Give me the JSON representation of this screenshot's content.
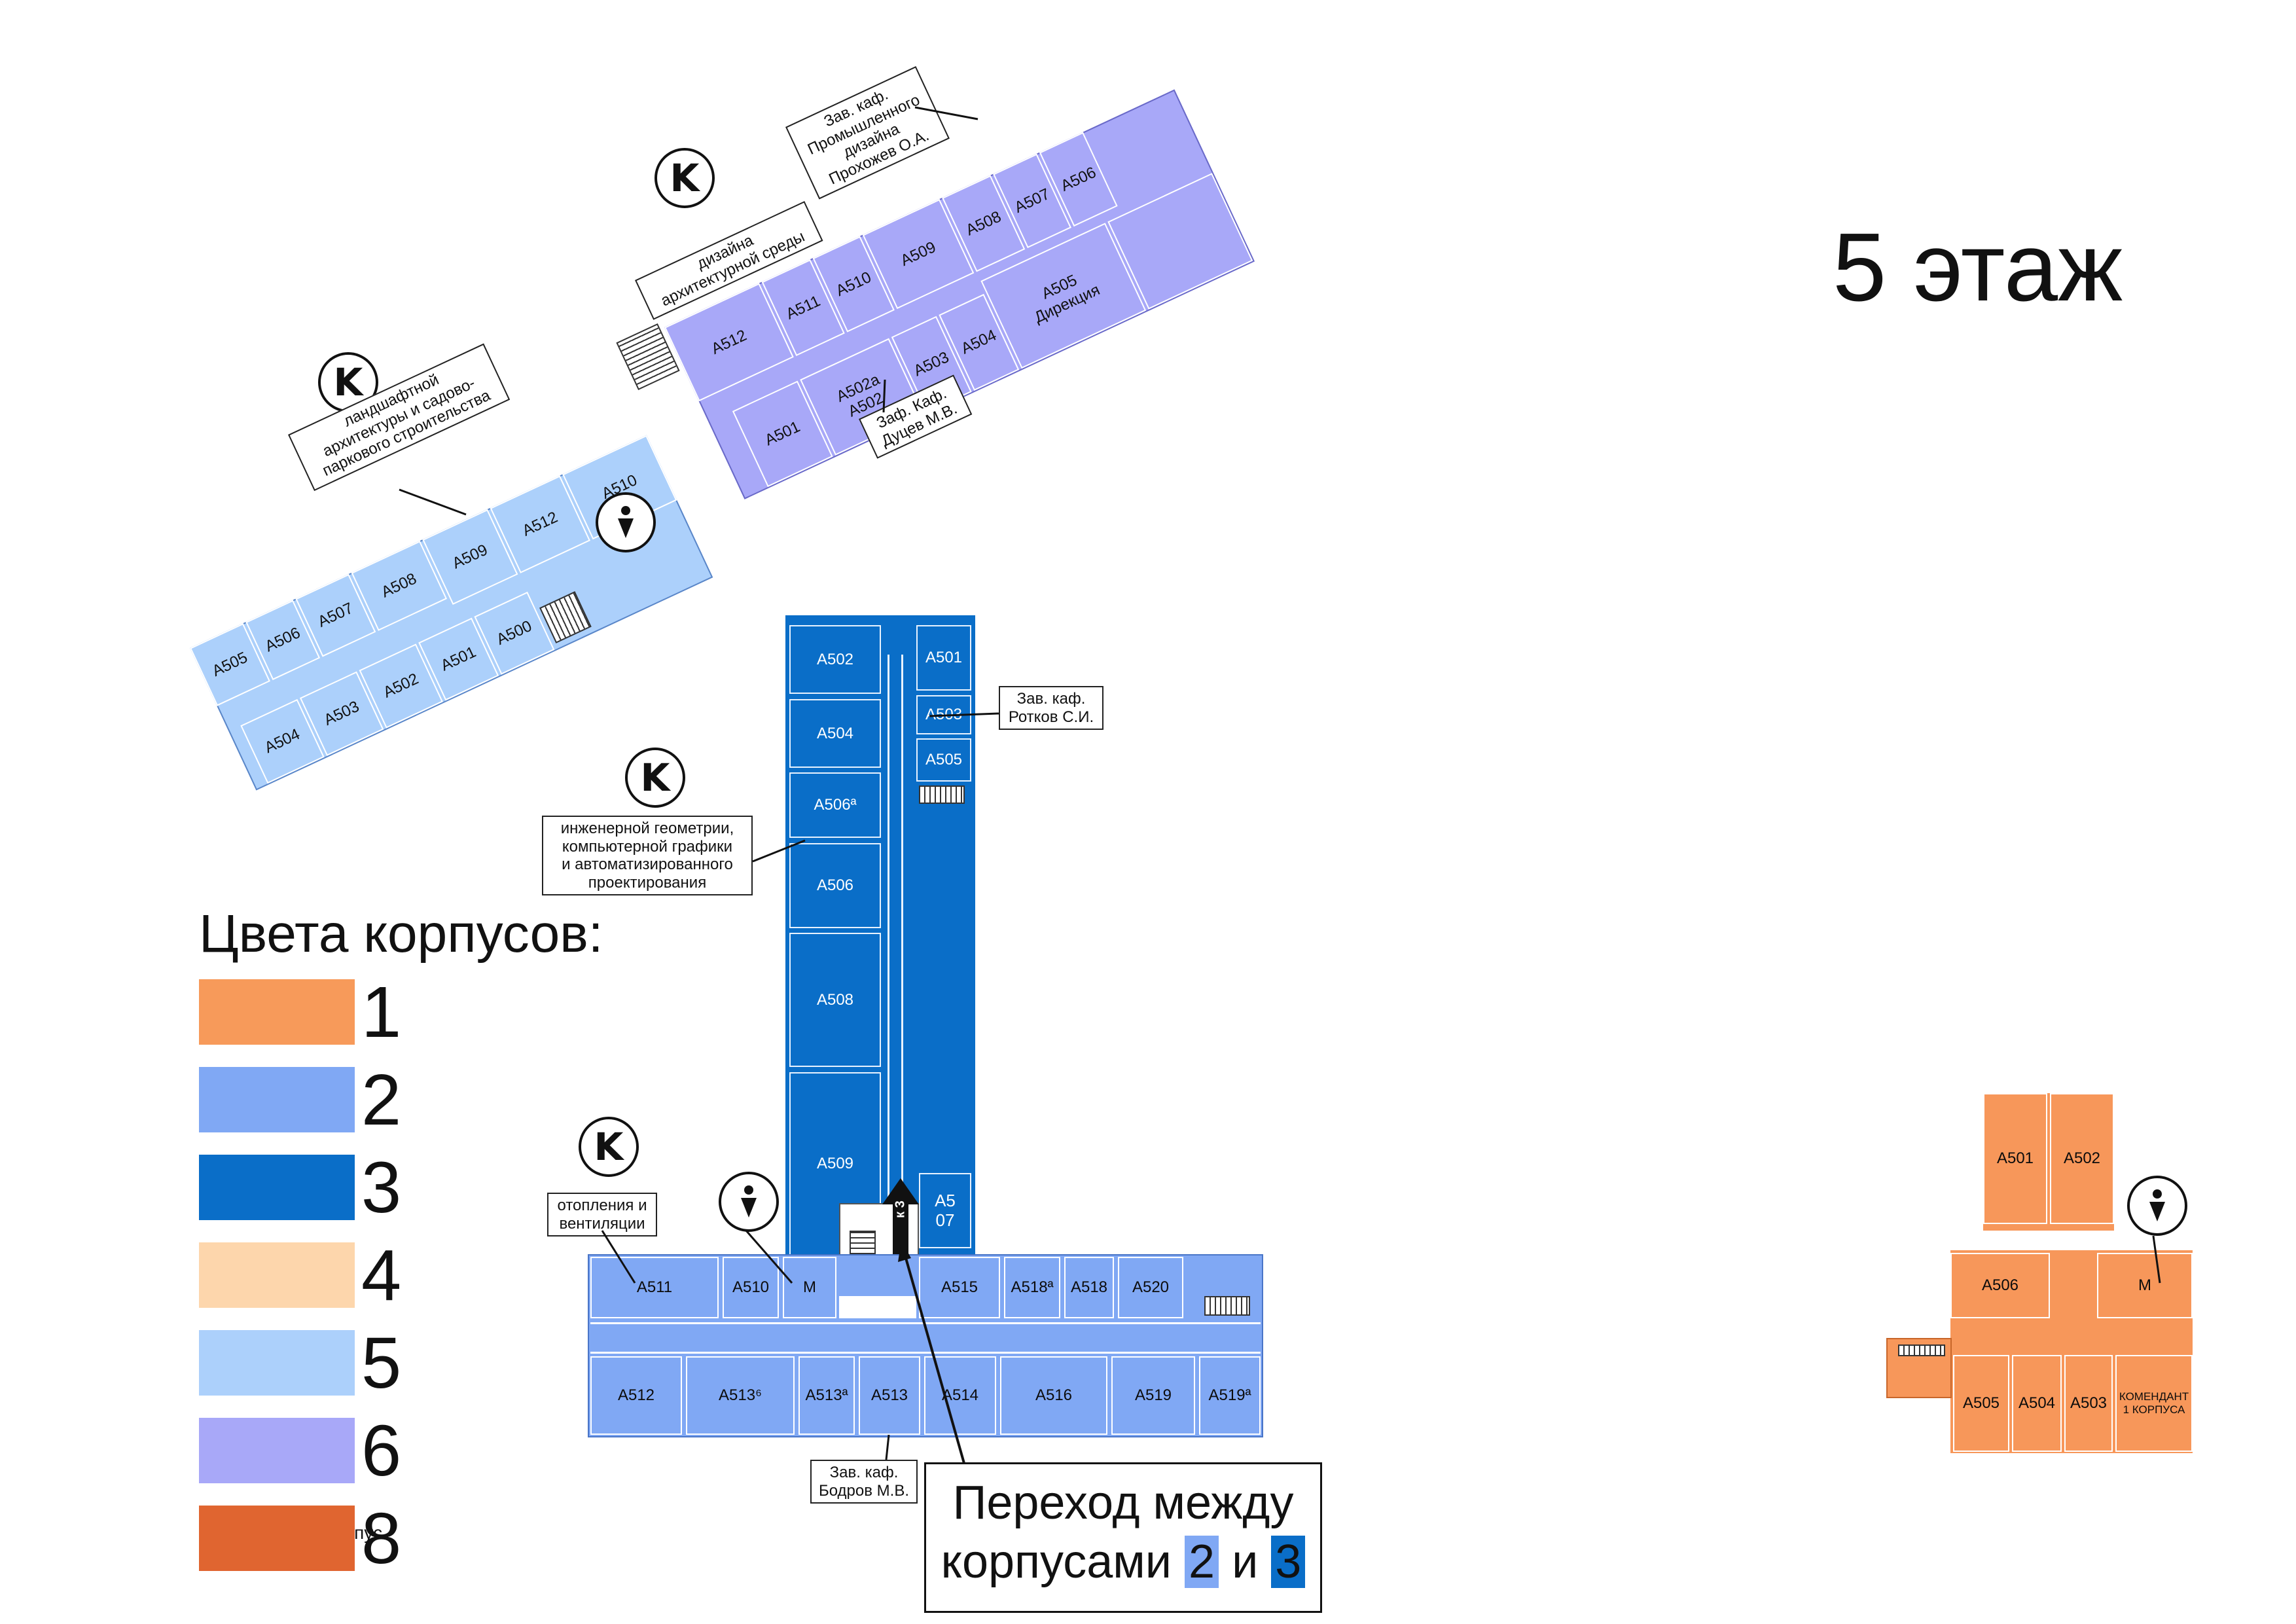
{
  "floor_title": "5 этаж",
  "kafedra_badge": "K",
  "legend": {
    "title": "Цвета корпусов:",
    "items": [
      {
        "label": "1",
        "color": "#f79a5a"
      },
      {
        "label": "2",
        "color": "#80a8f4"
      },
      {
        "label": "3",
        "color": "#0a6ec8"
      },
      {
        "label": "4",
        "color": "#fdd6ac"
      },
      {
        "label": "5",
        "color": "#acd0fb"
      },
      {
        "label": "6",
        "color": "#a8a8f8"
      },
      {
        "label": "8",
        "color": "#e06530"
      }
    ],
    "overlap_text": "орпус"
  },
  "building3": {
    "rooms_left": [
      "A502",
      "A504",
      "A506ª",
      "A506",
      "A508",
      "A509"
    ],
    "rooms_right": [
      "A501",
      "A503",
      "A505",
      "A5\n07"
    ],
    "arrow_label": "к 3"
  },
  "building2": {
    "top_row": [
      "A511",
      "A510",
      "M",
      "A515",
      "A518ª",
      "A518",
      "A520"
    ],
    "bottom_row": [
      "A512",
      "A513⁶",
      "A513ª",
      "A513",
      "A514",
      "A516",
      "A519",
      "A519ª"
    ]
  },
  "building1": {
    "rooms": [
      "A501",
      "A502",
      "A506",
      "M",
      "A505",
      "A504",
      "A503",
      "КОМЕНДАНТ\n1 КОРПУСА"
    ]
  },
  "wing5": {
    "top_row": [
      "A505",
      "A506",
      "A507",
      "A508",
      "A509",
      "A512",
      "A510"
    ],
    "bottom_row": [
      "A504",
      "A503",
      "A502",
      "A501",
      "A500"
    ]
  },
  "wing6": {
    "top_row": [
      "A512",
      "A511",
      "A510",
      "A509",
      "A508",
      "A507",
      "A506"
    ],
    "bottom_row": [
      "A501",
      "A502a\nA502",
      "A503",
      "A504",
      "A505\nДирекция"
    ]
  },
  "callouts": {
    "rotkov": "Зав. каф.\nРотков С.И.",
    "geometry": "инженерной геометрии,\nкомпьютерной графики\nи автоматизированного\nпроектирования",
    "heating": "отопления и\nвентиляции",
    "bodrov": "Зав. каф.\nБодров М.В.",
    "landscape": "ландшафтной\nархитектуры и садово-\nпаркового строительства",
    "design_env": "дизайна\nархитектурной среды",
    "prokhozhev": "Зав. каф.\nПромышленного\nдизайна\nПрохожев О.А.",
    "dutsev": "Заф. Каф.\nДуцев М.В."
  },
  "transition": {
    "line1": "Переход между",
    "line2_prefix": "корпусами",
    "num_a": "2",
    "connector": "и",
    "num_b": "3"
  }
}
